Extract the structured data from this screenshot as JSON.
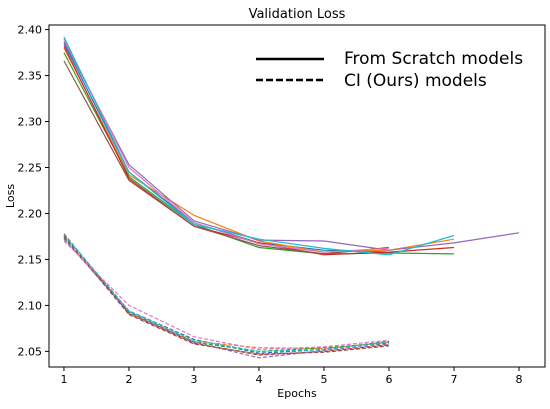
{
  "chart_data": {
    "type": "line",
    "title": "Validation Loss",
    "xlabel": "Epochs",
    "ylabel": "Loss",
    "xlim": [
      0.77,
      8.4
    ],
    "ylim": [
      2.033,
      2.405
    ],
    "xticks": [
      1,
      2,
      3,
      4,
      5,
      6,
      7,
      8
    ],
    "yticks": [
      2.05,
      2.1,
      2.15,
      2.2,
      2.25,
      2.3,
      2.35,
      2.4
    ],
    "ytick_labels": [
      "2.05",
      "2.10",
      "2.15",
      "2.20",
      "2.25",
      "2.30",
      "2.35",
      "2.40"
    ],
    "grid": false,
    "legend": {
      "placement": "top-right",
      "entries": [
        {
          "label": "From Scratch models",
          "style": "solid"
        },
        {
          "label": "CI (Ours) models",
          "style": "dashed"
        }
      ]
    },
    "series": [
      {
        "style": "solid",
        "color": "#1f77b4",
        "x": [
          1,
          2,
          3,
          4,
          5,
          6
        ],
        "y": [
          2.385,
          2.245,
          2.19,
          2.168,
          2.16,
          2.158
        ]
      },
      {
        "style": "solid",
        "color": "#ff7f0e",
        "x": [
          1,
          2,
          3,
          4,
          5,
          6,
          7
        ],
        "y": [
          2.38,
          2.242,
          2.198,
          2.17,
          2.158,
          2.16,
          2.172
        ]
      },
      {
        "style": "solid",
        "color": "#2ca02c",
        "x": [
          1,
          2,
          3,
          4,
          5,
          6,
          7
        ],
        "y": [
          2.375,
          2.24,
          2.188,
          2.163,
          2.156,
          2.157,
          2.156
        ]
      },
      {
        "style": "solid",
        "color": "#d62728",
        "x": [
          1,
          2,
          3,
          4,
          5,
          6,
          7
        ],
        "y": [
          2.382,
          2.238,
          2.186,
          2.168,
          2.155,
          2.158,
          2.163
        ]
      },
      {
        "style": "solid",
        "color": "#9467bd",
        "x": [
          1,
          2,
          3,
          4,
          5,
          6,
          7,
          8
        ],
        "y": [
          2.387,
          2.253,
          2.192,
          2.171,
          2.17,
          2.16,
          2.168,
          2.179
        ]
      },
      {
        "style": "solid",
        "color": "#8c564b",
        "x": [
          1,
          2,
          3,
          4,
          5,
          6
        ],
        "y": [
          2.366,
          2.236,
          2.186,
          2.165,
          2.156,
          2.163
        ]
      },
      {
        "style": "solid",
        "color": "#e377c2",
        "x": [
          1,
          2,
          3,
          4,
          5,
          6
        ],
        "y": [
          2.39,
          2.25,
          2.19,
          2.167,
          2.158,
          2.162
        ]
      },
      {
        "style": "solid",
        "color": "#17becf",
        "x": [
          1,
          2,
          3,
          4,
          5,
          6,
          7
        ],
        "y": [
          2.392,
          2.245,
          2.188,
          2.172,
          2.162,
          2.155,
          2.176
        ]
      },
      {
        "style": "dashed",
        "color": "#1f77b4",
        "x": [
          1,
          2,
          3,
          4,
          5,
          6
        ],
        "y": [
          2.176,
          2.094,
          2.063,
          2.048,
          2.052,
          2.061
        ]
      },
      {
        "style": "dashed",
        "color": "#ff7f0e",
        "x": [
          1,
          2,
          3,
          4,
          5,
          6
        ],
        "y": [
          2.173,
          2.093,
          2.061,
          2.054,
          2.053,
          2.06
        ]
      },
      {
        "style": "dashed",
        "color": "#2ca02c",
        "x": [
          1,
          2,
          3,
          4,
          5,
          6
        ],
        "y": [
          2.174,
          2.092,
          2.06,
          2.05,
          2.054,
          2.059
        ]
      },
      {
        "style": "dashed",
        "color": "#d62728",
        "x": [
          1,
          2,
          3,
          4,
          5,
          6
        ],
        "y": [
          2.178,
          2.091,
          2.059,
          2.046,
          2.05,
          2.057
        ]
      },
      {
        "style": "dashed",
        "color": "#9467bd",
        "x": [
          1,
          2,
          3,
          4,
          5,
          6
        ],
        "y": [
          2.172,
          2.093,
          2.06,
          2.043,
          2.051,
          2.058
        ]
      },
      {
        "style": "dashed",
        "color": "#8c564b",
        "x": [
          1,
          2,
          3,
          4,
          5,
          6
        ],
        "y": [
          2.175,
          2.09,
          2.058,
          2.047,
          2.049,
          2.056
        ]
      },
      {
        "style": "dashed",
        "color": "#e377c2",
        "x": [
          1,
          2,
          3,
          4,
          5,
          6
        ],
        "y": [
          2.17,
          2.1,
          2.066,
          2.052,
          2.055,
          2.062
        ]
      },
      {
        "style": "dashed",
        "color": "#17becf",
        "x": [
          1,
          2,
          3,
          4,
          5,
          6
        ],
        "y": [
          2.177,
          2.094,
          2.062,
          2.05,
          2.052,
          2.06
        ]
      }
    ]
  }
}
